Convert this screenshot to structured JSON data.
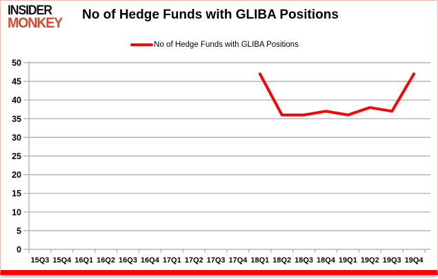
{
  "brand": {
    "line1": "INSIDER",
    "line2": "MONKEY"
  },
  "header": {
    "title": "No of Hedge Funds with GLIBA Positions"
  },
  "legend": {
    "label": "No of Hedge Funds with GLIBA Positions"
  },
  "colors": {
    "series": "#ff0000",
    "brand_accent": "#d9482b",
    "gridline": "#a6a6a6",
    "axis": "#a6a6a6",
    "frame_border": "#f2b5ae",
    "bottom_bar": "#ff0000",
    "text": "#000000"
  },
  "chart_data": {
    "type": "line",
    "title": "No of Hedge Funds with GLIBA Positions",
    "categories": [
      "15Q3",
      "15Q4",
      "16Q1",
      "16Q2",
      "16Q3",
      "16Q4",
      "17Q1",
      "17Q2",
      "17Q3",
      "17Q4",
      "18Q1",
      "18Q2",
      "18Q3",
      "18Q4",
      "19Q1",
      "19Q2",
      "19Q3",
      "19Q4"
    ],
    "series": [
      {
        "name": "No of Hedge Funds with GLIBA Positions",
        "color": "#ff0000",
        "values": [
          null,
          null,
          null,
          null,
          null,
          null,
          null,
          null,
          null,
          null,
          47,
          36,
          36,
          37,
          36,
          38,
          37,
          47
        ]
      }
    ],
    "xlabel": "",
    "ylabel": "",
    "ylim": [
      0,
      50
    ],
    "ytick_step": 5,
    "grid": true,
    "legend_position": "top"
  }
}
